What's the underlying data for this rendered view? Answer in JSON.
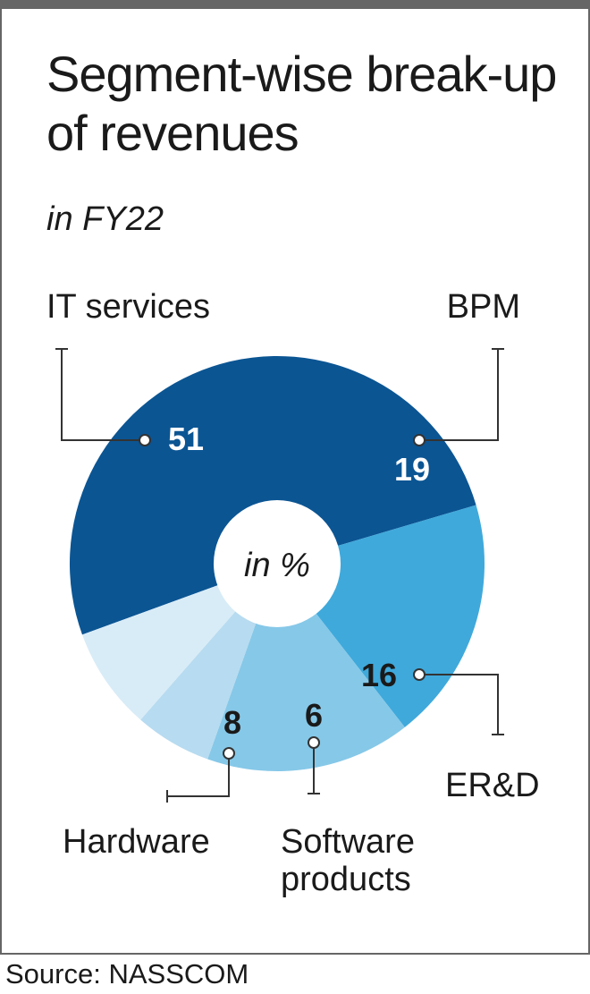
{
  "chart_data": {
    "type": "pie",
    "title": "Segment-wise break-up of revenues",
    "subtitle": "in FY22",
    "center_label": "in %",
    "source": "Source: NASSCOM",
    "slices": [
      {
        "label": "IT services",
        "value": 51,
        "color": "#0b5593",
        "value_color": "#ffffff"
      },
      {
        "label": "BPM",
        "value": 19,
        "color": "#3fa9db",
        "value_color": "#ffffff"
      },
      {
        "label": "ER&D",
        "value": 16,
        "color": "#86c8e8",
        "value_color": "#1a1a1a"
      },
      {
        "label": "Software products",
        "value": 6,
        "color": "#b7dbf0",
        "value_color": "#1a1a1a"
      },
      {
        "label": "Hardware",
        "value": 8,
        "color": "#d8ecf7",
        "value_color": "#1a1a1a"
      }
    ]
  }
}
